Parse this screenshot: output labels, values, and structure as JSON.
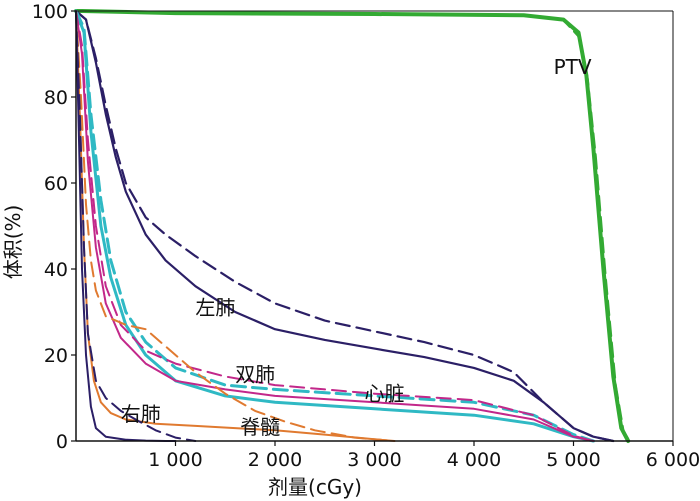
{
  "chart_data": {
    "type": "line",
    "xlabel": "剂量(cGy)",
    "ylabel": "体积(%)",
    "xlim": [
      0,
      6000
    ],
    "ylim": [
      0,
      100
    ],
    "x_ticks": [
      1000,
      2000,
      3000,
      4000,
      5000,
      6000
    ],
    "x_tick_labels": [
      "1 000",
      "2 000",
      "3 000",
      "4 000",
      "5 000",
      "6 000"
    ],
    "y_ticks": [
      0,
      20,
      40,
      60,
      80,
      100
    ],
    "y_tick_labels": [
      "0",
      "20",
      "40",
      "60",
      "80",
      "100"
    ],
    "grid": false,
    "legend": "none",
    "annotations": [
      {
        "text": "PTV",
        "x": 4800,
        "y": 87
      },
      {
        "text": "左肺",
        "x": 1200,
        "y": 31
      },
      {
        "text": "双肺",
        "x": 1600,
        "y": 15.5
      },
      {
        "text": "心脏",
        "x": 2900,
        "y": 11
      },
      {
        "text": "右肺",
        "x": 450,
        "y": 6.3
      },
      {
        "text": "脊髓",
        "x": 1650,
        "y": 3.3
      }
    ],
    "series": [
      {
        "color": "#33aa33",
        "style": "solid",
        "width": 4,
        "x": [
          0,
          60,
          1000,
          3000,
          4500,
          4900,
          5050,
          5130,
          5200,
          5300,
          5400,
          5480,
          5550
        ],
        "y": [
          100,
          100,
          99.5,
          99.3,
          99,
          98,
          95,
          85,
          68,
          40,
          15,
          3,
          0
        ]
      },
      {
        "color": "#33aa33",
        "style": "dashed",
        "width": 3,
        "x": [
          0,
          60,
          1000,
          3000,
          4500,
          4900,
          5060,
          5140,
          5220,
          5320,
          5420,
          5500,
          5560
        ],
        "y": [
          100,
          100,
          99.5,
          99.3,
          99,
          98,
          94,
          84,
          66,
          38,
          13,
          2,
          0
        ]
      },
      {
        "color": "#2b1f66",
        "style": "solid",
        "width": 2.2,
        "x": [
          0,
          100,
          200,
          300,
          400,
          500,
          700,
          900,
          1200,
          1600,
          2000,
          2500,
          3000,
          3500,
          4000,
          4400,
          4700,
          5000,
          5200,
          5400
        ],
        "y": [
          100,
          98,
          88,
          76,
          66,
          58,
          48,
          42,
          36,
          30,
          26,
          23.5,
          21.5,
          19.5,
          17,
          14,
          9,
          3,
          1,
          0
        ]
      },
      {
        "color": "#2b1f66",
        "style": "dashed",
        "width": 2.2,
        "x": [
          0,
          100,
          200,
          300,
          400,
          500,
          700,
          900,
          1200,
          1600,
          2000,
          2500,
          3000,
          3500,
          4000,
          4400,
          4700,
          5000,
          5200,
          5400
        ],
        "y": [
          100,
          98,
          89,
          78,
          68,
          60,
          52,
          48,
          43,
          37,
          32,
          28,
          25.5,
          23,
          20,
          16,
          9,
          3,
          1,
          0
        ]
      },
      {
        "color": "#2fb9c4",
        "style": "solid",
        "width": 3,
        "x": [
          0,
          80,
          150,
          250,
          350,
          500,
          700,
          1000,
          1500,
          2000,
          3000,
          4000,
          4600,
          5000,
          5200
        ],
        "y": [
          100,
          95,
          72,
          50,
          38,
          27,
          20,
          14,
          10.5,
          9,
          7.5,
          6,
          4,
          1,
          0
        ]
      },
      {
        "color": "#2fb9c4",
        "style": "dashed",
        "width": 3,
        "x": [
          0,
          80,
          150,
          250,
          350,
          500,
          700,
          1000,
          1500,
          2000,
          3000,
          4000,
          4600,
          5000,
          5200
        ],
        "y": [
          100,
          96,
          76,
          56,
          42,
          30,
          23,
          17,
          13,
          12,
          10.5,
          9,
          6,
          1.5,
          0
        ]
      },
      {
        "color": "#c2288a",
        "style": "solid",
        "width": 2,
        "x": [
          0,
          60,
          120,
          200,
          300,
          450,
          700,
          1000,
          1500,
          2000,
          3000,
          4000,
          4600,
          5000,
          5200
        ],
        "y": [
          100,
          90,
          65,
          45,
          32,
          24,
          18,
          14,
          12,
          10.5,
          9,
          7.5,
          5,
          1,
          0
        ]
      },
      {
        "color": "#c2288a",
        "style": "dashed",
        "width": 2,
        "x": [
          0,
          60,
          120,
          200,
          300,
          450,
          700,
          1000,
          1500,
          2000,
          3000,
          4000,
          4600,
          5000,
          5200
        ],
        "y": [
          100,
          92,
          70,
          50,
          36,
          27,
          21,
          18,
          15,
          13,
          11,
          9.5,
          6,
          1.2,
          0
        ]
      },
      {
        "color": "#e07a30",
        "style": "solid",
        "width": 2,
        "x": [
          0,
          40,
          80,
          120,
          180,
          250,
          350,
          500,
          800,
          1200,
          1600,
          2000,
          2500,
          3000,
          3200
        ],
        "y": [
          100,
          75,
          45,
          25,
          14,
          9,
          6.5,
          5,
          4,
          3.5,
          3,
          2.5,
          1.5,
          0.4,
          0
        ]
      },
      {
        "color": "#e07a30",
        "style": "dashed",
        "width": 2,
        "x": [
          0,
          50,
          100,
          150,
          200,
          300,
          500,
          700,
          900,
          1200,
          1500,
          1800,
          2100,
          2400,
          2800,
          3200
        ],
        "y": [
          100,
          80,
          55,
          42,
          35,
          29,
          27,
          26,
          22,
          16,
          11,
          7,
          4.5,
          2.5,
          0.8,
          0
        ]
      },
      {
        "color": "#2b1f66",
        "style": "solid",
        "width": 2,
        "x": [
          0,
          30,
          60,
          100,
          150,
          200,
          300,
          500,
          700,
          900,
          1000
        ],
        "y": [
          100,
          70,
          40,
          20,
          8,
          3,
          1,
          0.3,
          0.1,
          0,
          0
        ]
      },
      {
        "color": "#2b1f66",
        "style": "dashed",
        "width": 2,
        "x": [
          0,
          40,
          80,
          120,
          200,
          300,
          450,
          600,
          800,
          1000,
          1200
        ],
        "y": [
          100,
          75,
          45,
          25,
          14,
          10,
          7,
          5,
          2.5,
          0.8,
          0
        ]
      }
    ]
  }
}
